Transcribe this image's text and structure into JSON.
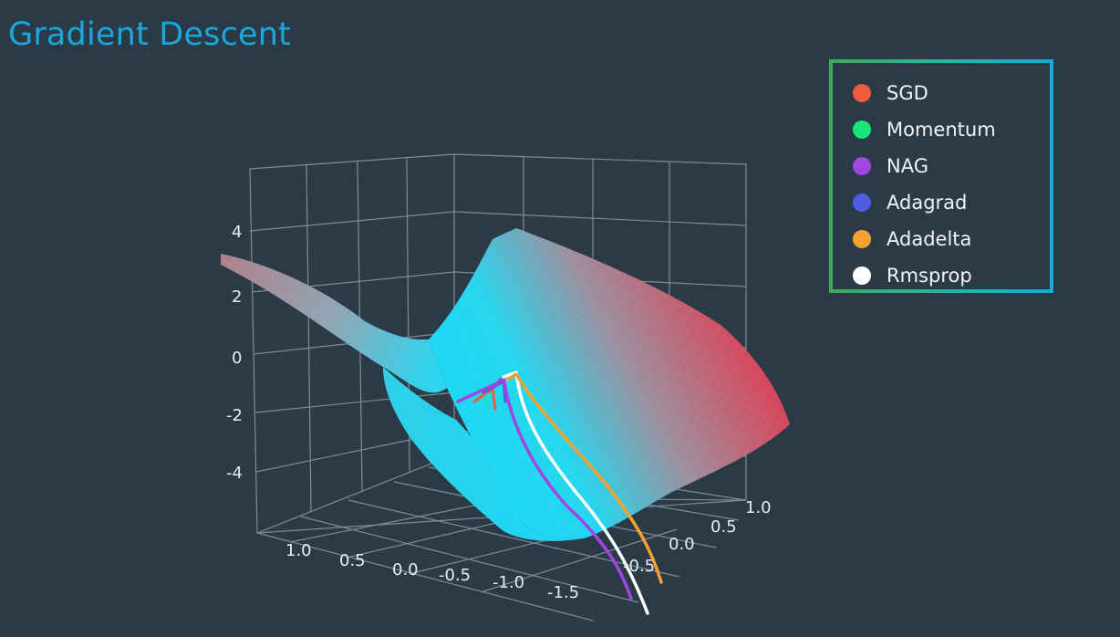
{
  "title": "Gradient Descent",
  "legend": {
    "items": [
      {
        "label": "SGD",
        "color": "#f05c3c"
      },
      {
        "label": "Momentum",
        "color": "#18e67a"
      },
      {
        "label": "NAG",
        "color": "#a246e0"
      },
      {
        "label": "Adagrad",
        "color": "#4f5de2"
      },
      {
        "label": "Adadelta",
        "color": "#f5a232"
      },
      {
        "label": "Rmsprop",
        "color": "#ffffff"
      }
    ]
  },
  "chart_data": {
    "type": "surface",
    "surface": "saddle",
    "z_ticks": [
      "4",
      "2",
      "0",
      "-2",
      "-4"
    ],
    "x_ticks": [
      "1.0",
      "0.5",
      "0.0",
      "-0.5",
      "-1.0",
      "-1.5"
    ],
    "y_ticks": [
      "1.0",
      "0.5",
      "0.0",
      "-0.5"
    ],
    "colorscale": [
      "#18d8f5",
      "#d8465a"
    ],
    "series": [
      {
        "name": "SGD",
        "color": "#f05c3c"
      },
      {
        "name": "Momentum",
        "color": "#18e67a"
      },
      {
        "name": "NAG",
        "color": "#a246e0"
      },
      {
        "name": "Adagrad",
        "color": "#4f5de2"
      },
      {
        "name": "Adadelta",
        "color": "#f5a232"
      },
      {
        "name": "Rmsprop",
        "color": "#ffffff"
      }
    ]
  }
}
